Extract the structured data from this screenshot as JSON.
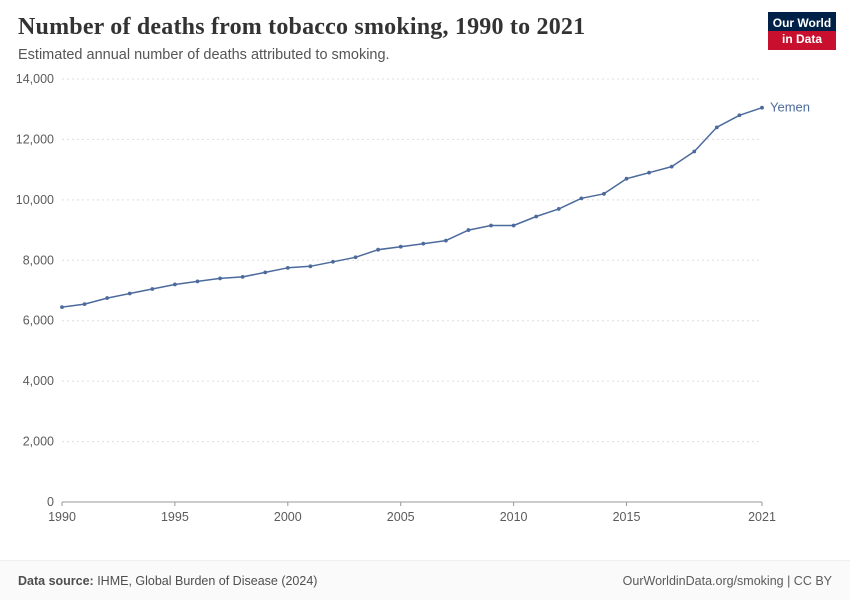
{
  "header": {
    "title": "Number of deaths from tobacco smoking, 1990 to 2021",
    "subtitle": "Estimated annual number of deaths attributed to smoking."
  },
  "logo": {
    "line1": "Our World",
    "line2": "in Data",
    "bg_color": "#002147",
    "red_color": "#C8102E"
  },
  "footer": {
    "source_label": "Data source:",
    "source_text": " IHME, Global Burden of Disease (2024)",
    "right_text": "OurWorldinData.org/smoking | CC BY"
  },
  "chart_data": {
    "type": "line",
    "title": "Number of deaths from tobacco smoking, 1990 to 2021",
    "subtitle": "Estimated annual number of deaths attributed to smoking.",
    "xlabel": "",
    "ylabel": "",
    "xlim": [
      1990,
      2021
    ],
    "ylim": [
      0,
      14000
    ],
    "x_ticks": [
      1990,
      1995,
      2000,
      2005,
      2010,
      2015,
      2021
    ],
    "y_ticks": [
      0,
      2000,
      4000,
      6000,
      8000,
      10000,
      12000,
      14000
    ],
    "grid": "horizontal-dashed",
    "legend_position": "end-of-line",
    "line_color": "#4C6A9C",
    "axis_color": "#999999",
    "grid_color": "#dddddd",
    "series": [
      {
        "name": "Yemen",
        "x": [
          1990,
          1991,
          1992,
          1993,
          1994,
          1995,
          1996,
          1997,
          1998,
          1999,
          2000,
          2001,
          2002,
          2003,
          2004,
          2005,
          2006,
          2007,
          2008,
          2009,
          2010,
          2011,
          2012,
          2013,
          2014,
          2015,
          2016,
          2017,
          2018,
          2019,
          2020,
          2021
        ],
        "values": [
          6450,
          6550,
          6750,
          6900,
          7050,
          7200,
          7300,
          7400,
          7450,
          7600,
          7750,
          7800,
          7950,
          8100,
          8350,
          8450,
          8550,
          8650,
          9000,
          9150,
          9150,
          9450,
          9700,
          10050,
          10200,
          10700,
          10900,
          11100,
          11600,
          12400,
          12800,
          13050
        ]
      }
    ]
  }
}
